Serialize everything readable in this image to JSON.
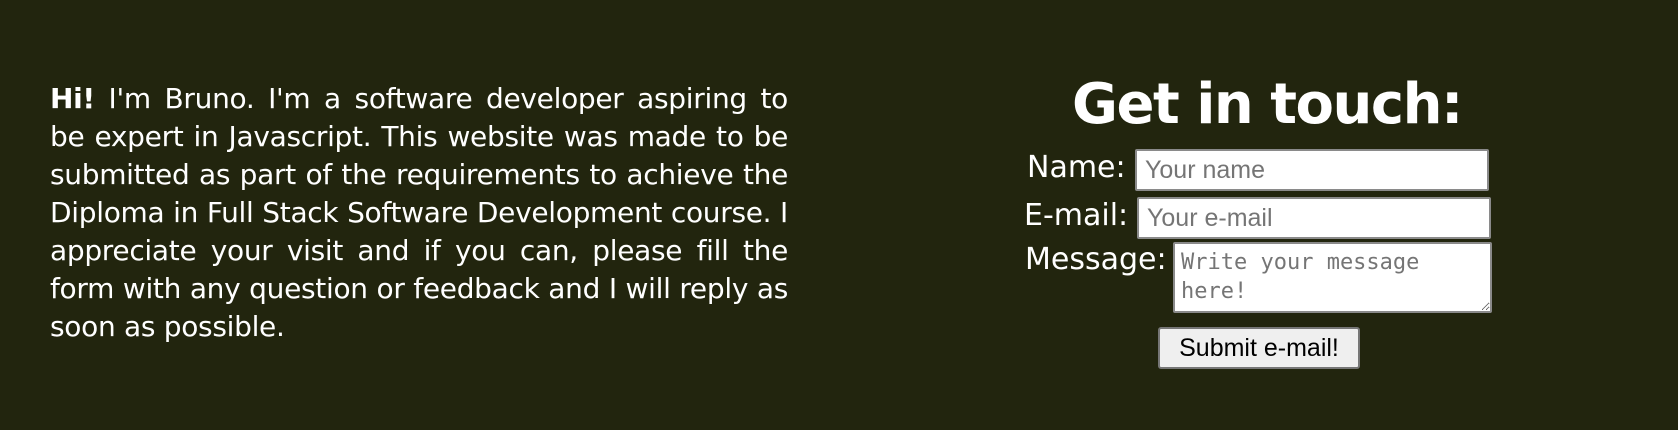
{
  "intro": {
    "greeting": "Hi!",
    "text": " I'm Bruno. I'm a software developer aspiring to be expert in Javascript. This website was made to be submitted as part of the requirements to achieve the Diploma in Full Stack Software Development course. I appreciate your visit and if you can, please fill the form with any question or feedback and I will reply as soon as possible."
  },
  "contact": {
    "title": "Get in touch:",
    "name_label": "Name:",
    "name_placeholder": "Your name",
    "email_label": "E-mail:",
    "email_placeholder": "Your e-mail",
    "message_label": "Message:",
    "message_placeholder": "Write your message here!",
    "submit_label": "Submit e-mail!"
  },
  "colors": {
    "background": "#22250e",
    "text": "#ffffff"
  }
}
